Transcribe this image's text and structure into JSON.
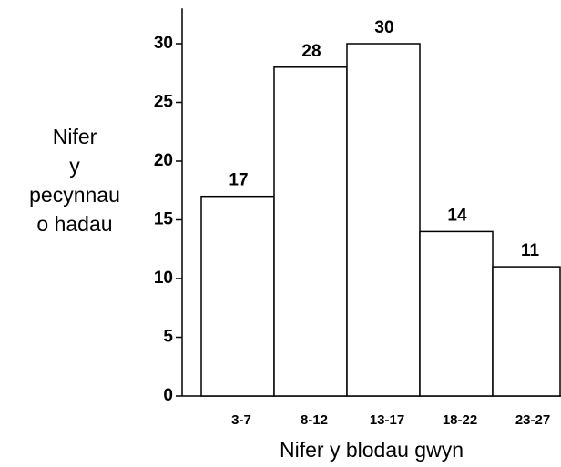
{
  "chart_data": {
    "type": "bar",
    "categories": [
      "3-7",
      "8-12",
      "13-17",
      "18-22",
      "23-27"
    ],
    "values": [
      17,
      28,
      30,
      14,
      11
    ],
    "color": "#ffffff",
    "ylim": [
      0,
      33
    ],
    "yticks": [
      0,
      5,
      10,
      15,
      20,
      25,
      30
    ],
    "ylabel": [
      "Nifer",
      "y",
      "pecynnau",
      "o hadau"
    ],
    "xlabel": "Nifer y blodau gwyn",
    "grid": false
  }
}
